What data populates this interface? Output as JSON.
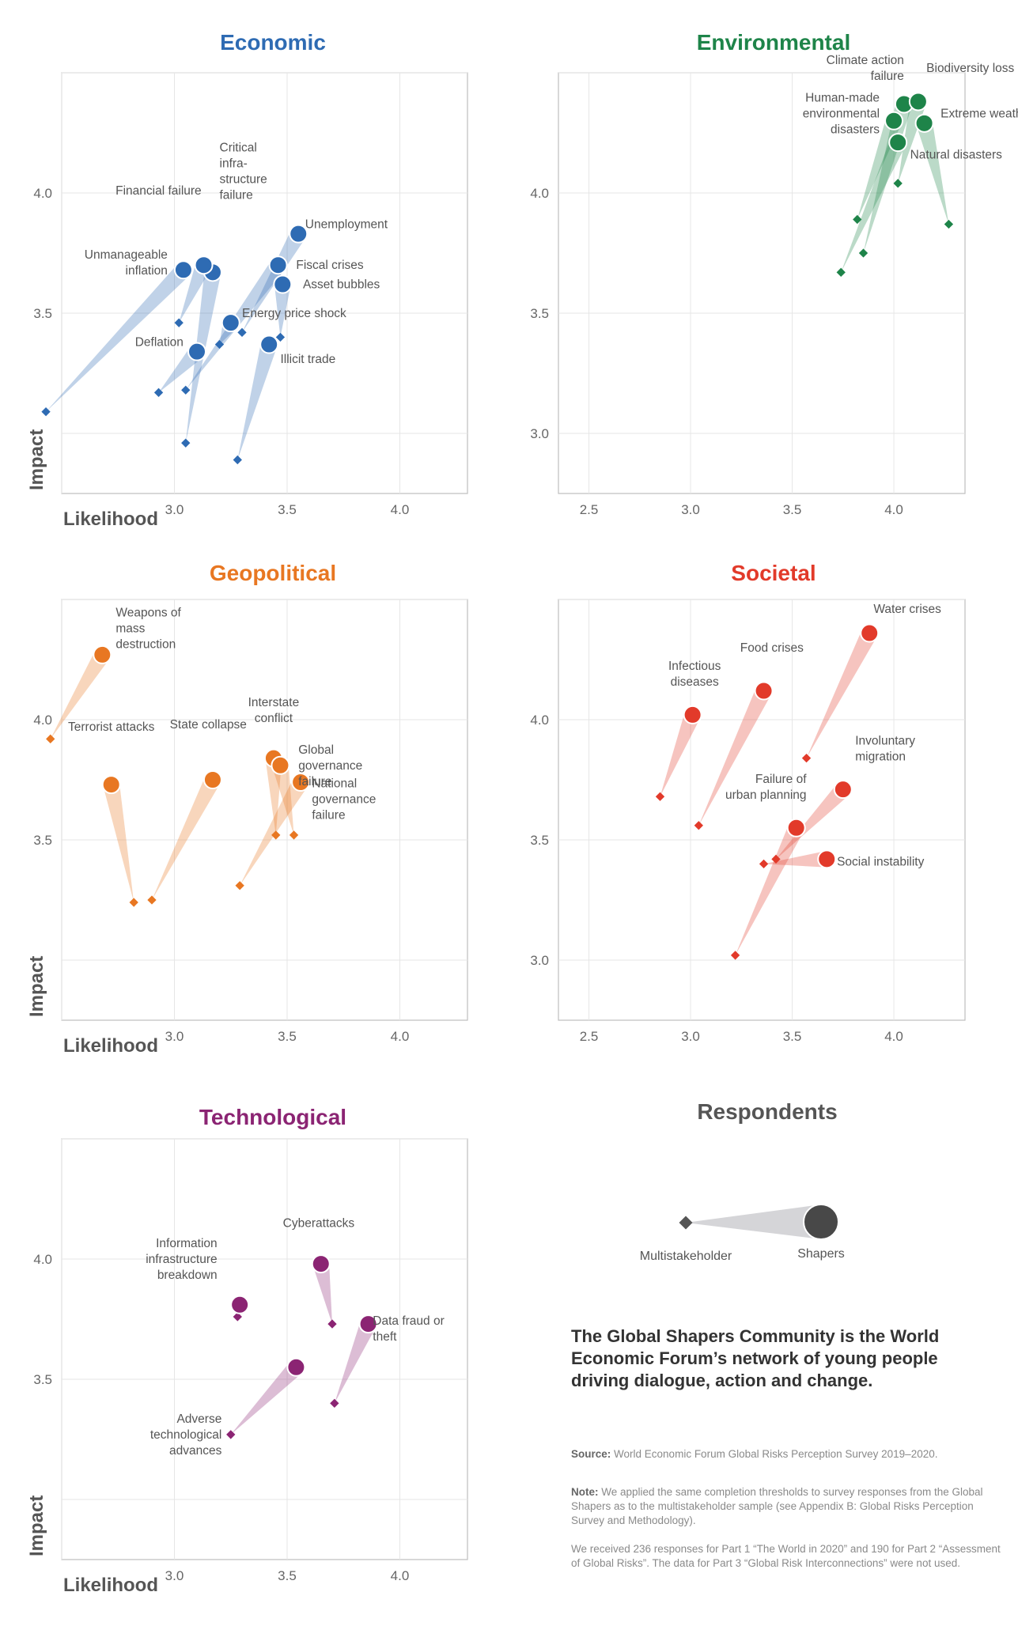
{
  "axis_labels": {
    "likelihood": "Likelihood",
    "impact": "Impact"
  },
  "chart_data": [
    {
      "type": "scatter",
      "title": "Economic",
      "color": "#2e6bb3",
      "xlim": [
        2.5,
        4.3
      ],
      "ylim": [
        2.75,
        4.5
      ],
      "xticks": [
        "3.0",
        "3.5",
        "4.0"
      ],
      "yticks": [
        "3.5",
        "4.0"
      ],
      "show_axis_titles": true,
      "points": [
        {
          "label": "Unemployment",
          "shapers": [
            3.55,
            3.83
          ],
          "multi": [
            3.3,
            3.42
          ],
          "lx": 3.58,
          "ly": 3.87,
          "anchor": "start"
        },
        {
          "label": "Critical infra- structure failure",
          "shapers": [
            3.17,
            3.67
          ],
          "multi": [
            3.05,
            2.96
          ],
          "lx": 3.2,
          "ly": 4.09,
          "anchor": "start"
        },
        {
          "label": "Financial failure",
          "shapers": [
            3.13,
            3.7
          ],
          "multi": [
            3.02,
            3.46
          ],
          "lx": 3.12,
          "ly": 4.01,
          "anchor": "end"
        },
        {
          "label": "Unmanageable inflation",
          "shapers": [
            3.04,
            3.68
          ],
          "multi": [
            2.43,
            3.09
          ],
          "lx": 2.97,
          "ly": 3.71,
          "anchor": "end"
        },
        {
          "label": "Fiscal crises",
          "shapers": [
            3.46,
            3.7
          ],
          "multi": [
            3.05,
            3.18
          ],
          "lx": 3.54,
          "ly": 3.7,
          "anchor": "start"
        },
        {
          "label": "Asset bubbles",
          "shapers": [
            3.48,
            3.62
          ],
          "multi": [
            3.47,
            3.4
          ],
          "lx": 3.57,
          "ly": 3.62,
          "anchor": "start"
        },
        {
          "label": "Energy price shock",
          "shapers": [
            3.25,
            3.46
          ],
          "multi": [
            3.2,
            3.37
          ],
          "lx": 3.3,
          "ly": 3.5,
          "anchor": "start"
        },
        {
          "label": "Deflation",
          "shapers": [
            3.1,
            3.34
          ],
          "multi": [
            2.93,
            3.17
          ],
          "lx": 3.04,
          "ly": 3.38,
          "anchor": "end"
        },
        {
          "label": "Illicit trade",
          "shapers": [
            3.42,
            3.37
          ],
          "multi": [
            3.28,
            2.89
          ],
          "lx": 3.47,
          "ly": 3.31,
          "anchor": "start"
        }
      ]
    },
    {
      "type": "scatter",
      "title": "Environmental",
      "color": "#1e8449",
      "xlim": [
        2.35,
        4.35
      ],
      "ylim": [
        2.75,
        4.5
      ],
      "xticks": [
        "2.5",
        "3.0",
        "3.5",
        "4.0"
      ],
      "yticks": [
        "3.0",
        "3.5",
        "4.0"
      ],
      "show_axis_titles": false,
      "points": [
        {
          "label": "Climate action failure",
          "shapers": [
            4.05,
            4.37
          ],
          "multi": [
            3.85,
            3.75
          ],
          "lx": 4.05,
          "ly": 4.52,
          "anchor": "end"
        },
        {
          "label": "Biodiversity loss",
          "shapers": [
            4.12,
            4.38
          ],
          "multi": [
            4.02,
            4.04
          ],
          "lx": 4.16,
          "ly": 4.52,
          "anchor": "start"
        },
        {
          "label": "Extreme weather",
          "shapers": [
            4.15,
            4.29
          ],
          "multi": [
            4.27,
            3.87
          ],
          "lx": 4.23,
          "ly": 4.33,
          "anchor": "start"
        },
        {
          "label": "Human-made environmental disasters",
          "shapers": [
            4.0,
            4.3
          ],
          "multi": [
            3.82,
            3.89
          ],
          "lx": 3.93,
          "ly": 4.33,
          "anchor": "end"
        },
        {
          "label": "Natural disasters",
          "shapers": [
            4.02,
            4.21
          ],
          "multi": [
            3.74,
            3.67
          ],
          "lx": 4.08,
          "ly": 4.16,
          "anchor": "start"
        }
      ]
    },
    {
      "type": "scatter",
      "title": "Geopolitical",
      "color": "#e87722",
      "xlim": [
        2.5,
        4.3
      ],
      "ylim": [
        2.75,
        4.5
      ],
      "xticks": [
        "3.0",
        "3.5",
        "4.0"
      ],
      "yticks": [
        "3.5",
        "4.0"
      ],
      "show_axis_titles": true,
      "points": [
        {
          "label": "Weapons of mass destruction",
          "shapers": [
            2.68,
            4.27
          ],
          "multi": [
            2.45,
            3.92
          ],
          "lx": 2.74,
          "ly": 4.38,
          "anchor": "start"
        },
        {
          "label": "Terrorist attacks",
          "shapers": [
            2.72,
            3.73
          ],
          "multi": [
            2.82,
            3.24
          ],
          "lx": 2.72,
          "ly": 3.97,
          "anchor": "middle"
        },
        {
          "label": "State collapse",
          "shapers": [
            3.17,
            3.75
          ],
          "multi": [
            2.9,
            3.25
          ],
          "lx": 3.15,
          "ly": 3.98,
          "anchor": "middle"
        },
        {
          "label": "Interstate conflict",
          "shapers": [
            3.44,
            3.84
          ],
          "multi": [
            3.45,
            3.52
          ],
          "lx": 3.44,
          "ly": 4.04,
          "anchor": "middle"
        },
        {
          "label": "Global governance failure",
          "shapers": [
            3.47,
            3.81
          ],
          "multi": [
            3.53,
            3.52
          ],
          "lx": 3.55,
          "ly": 3.81,
          "anchor": "start"
        },
        {
          "label": "National governance failure",
          "shapers": [
            3.56,
            3.74
          ],
          "multi": [
            3.29,
            3.31
          ],
          "lx": 3.61,
          "ly": 3.67,
          "anchor": "start"
        }
      ]
    },
    {
      "type": "scatter",
      "title": "Societal",
      "color": "#e23a2a",
      "xlim": [
        2.35,
        4.35
      ],
      "ylim": [
        2.75,
        4.5
      ],
      "xticks": [
        "2.5",
        "3.0",
        "3.5",
        "4.0"
      ],
      "yticks": [
        "3.0",
        "3.5",
        "4.0"
      ],
      "show_axis_titles": false,
      "points": [
        {
          "label": "Water crises",
          "shapers": [
            3.88,
            4.36
          ],
          "multi": [
            3.57,
            3.84
          ],
          "lx": 3.9,
          "ly": 4.46,
          "anchor": "start"
        },
        {
          "label": "Food crises",
          "shapers": [
            3.36,
            4.12
          ],
          "multi": [
            3.04,
            3.56
          ],
          "lx": 3.4,
          "ly": 4.3,
          "anchor": "middle"
        },
        {
          "label": "Infectious diseases",
          "shapers": [
            3.01,
            4.02
          ],
          "multi": [
            2.85,
            3.68
          ],
          "lx": 3.02,
          "ly": 4.19,
          "anchor": "middle"
        },
        {
          "label": "Involuntary migration",
          "shapers": [
            3.75,
            3.71
          ],
          "multi": [
            3.42,
            3.42
          ],
          "lx": 3.81,
          "ly": 3.88,
          "anchor": "start"
        },
        {
          "label": "Failure of urban planning",
          "shapers": [
            3.52,
            3.55
          ],
          "multi": [
            3.22,
            3.02
          ],
          "lx": 3.57,
          "ly": 3.72,
          "anchor": "end"
        },
        {
          "label": "Social instability",
          "shapers": [
            3.67,
            3.42
          ],
          "multi": [
            3.36,
            3.4
          ],
          "lx": 3.72,
          "ly": 3.41,
          "anchor": "start"
        }
      ]
    },
    {
      "type": "scatter",
      "title": "Technological",
      "color": "#8b2473",
      "xlim": [
        2.5,
        4.3
      ],
      "ylim": [
        2.75,
        4.5
      ],
      "xticks": [
        "3.0",
        "3.5",
        "4.0"
      ],
      "yticks": [
        "3.5",
        "4.0"
      ],
      "show_axis_titles": true,
      "points": [
        {
          "label": "Cyberattacks",
          "shapers": [
            3.65,
            3.98
          ],
          "multi": [
            3.7,
            3.73
          ],
          "lx": 3.64,
          "ly": 4.15,
          "anchor": "middle"
        },
        {
          "label": "Information infrastructure breakdown",
          "shapers": [
            3.29,
            3.81
          ],
          "multi": [
            3.28,
            3.76
          ],
          "lx": 3.19,
          "ly": 4.0,
          "anchor": "end"
        },
        {
          "label": "Data fraud or theft",
          "shapers": [
            3.86,
            3.73
          ],
          "multi": [
            3.71,
            3.4
          ],
          "lx": 3.88,
          "ly": 3.71,
          "anchor": "start"
        },
        {
          "label": "Adverse technological advances",
          "shapers": [
            3.54,
            3.55
          ],
          "multi": [
            3.25,
            3.27
          ],
          "lx": 3.21,
          "ly": 3.27,
          "anchor": "end"
        }
      ]
    }
  ],
  "respondents": {
    "title": "Respondents",
    "multistakeholder_label": "Multistakeholder",
    "shapers_label": "Shapers",
    "color": "#444444"
  },
  "tagline": "The Global Shapers Community is the World Economic Forum’s network of young people driving dialogue, action and change.",
  "source": {
    "label": "Source:",
    "text": "World Economic Forum Global Risks Perception Survey 2019–2020."
  },
  "note": {
    "label": "Note:",
    "text": "We applied the same completion thresholds to survey responses from the Global Shapers as to the multistakeholder sample (see Appendix B: Global Risks Perception Survey and Methodology)."
  },
  "responses_text": "We received 236 responses for Part 1 “The World in 2020” and 190 for Part 2 “Assessment of Global Risks”. The data for Part 3 “Global Risk Interconnections” were not used."
}
